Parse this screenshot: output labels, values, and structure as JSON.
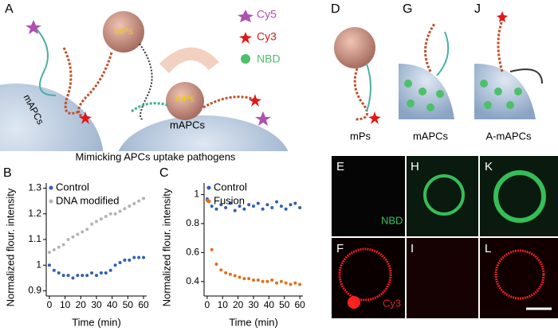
{
  "panel_a": {
    "label": "A",
    "particle_1": "mPs",
    "cell_1": "mAPCs",
    "particle_2": "mPs",
    "cell_2": "mAPCs",
    "legend_items": [
      "Cy5",
      "Cy3",
      "NBD"
    ],
    "caption": "Mimicking APCs uptake pathogens"
  },
  "schematics": [
    {
      "label": "D",
      "caption": "mPs"
    },
    {
      "label": "G",
      "caption": "mAPCs"
    },
    {
      "label": "J",
      "caption": "A-mAPCs"
    }
  ],
  "micrographs": [
    {
      "label": "E",
      "channel": "NBD"
    },
    {
      "label": "H"
    },
    {
      "label": "K"
    },
    {
      "label": "F",
      "channel": "Cy3"
    },
    {
      "label": "I"
    },
    {
      "label": "L"
    }
  ],
  "chart_data": [
    {
      "type": "scatter",
      "panel_label": "B",
      "xlabel": "Time (min)",
      "ylabel": "Normalized flour. intensity",
      "x": [
        0,
        3,
        6,
        9,
        12,
        15,
        18,
        21,
        24,
        27,
        30,
        33,
        36,
        39,
        42,
        45,
        48,
        51,
        54,
        57,
        60
      ],
      "series": [
        {
          "name": "Control",
          "color": "#2e5fb5",
          "values": [
            1.0,
            0.98,
            0.97,
            0.96,
            0.96,
            0.95,
            0.96,
            0.96,
            0.96,
            0.97,
            0.96,
            0.97,
            0.97,
            0.98,
            1.0,
            1.01,
            1.02,
            1.02,
            1.03,
            1.03,
            1.03
          ]
        },
        {
          "name": "DNA modified",
          "color": "#b4b4b4",
          "values": [
            1.05,
            1.06,
            1.07,
            1.08,
            1.1,
            1.11,
            1.12,
            1.13,
            1.14,
            1.16,
            1.17,
            1.18,
            1.19,
            1.2,
            1.2,
            1.21,
            1.22,
            1.23,
            1.24,
            1.25,
            1.26
          ]
        }
      ],
      "xlim": [
        -2,
        62
      ],
      "xticks": [
        0,
        10,
        20,
        30,
        40,
        50,
        60
      ],
      "ylim": [
        0.88,
        1.32
      ],
      "yticks": [
        0.9,
        1.0,
        1.1,
        1.2,
        1.3
      ],
      "legend": "upper left"
    },
    {
      "type": "scatter",
      "panel_label": "C",
      "xlabel": "Time (min)",
      "ylabel": "Normalized flour. intensity",
      "x": [
        0,
        3,
        6,
        9,
        12,
        15,
        18,
        21,
        24,
        27,
        30,
        33,
        36,
        39,
        42,
        45,
        48,
        51,
        54,
        57,
        60
      ],
      "series": [
        {
          "name": "Control",
          "color": "#2e5fb5",
          "values": [
            0.97,
            0.92,
            0.9,
            0.93,
            0.91,
            0.94,
            0.89,
            0.92,
            0.9,
            0.93,
            0.92,
            0.94,
            0.9,
            0.93,
            0.91,
            0.95,
            0.92,
            0.9,
            0.93,
            0.94,
            0.91
          ]
        },
        {
          "name": "Fusion",
          "color": "#e07020",
          "values": [
            0.96,
            0.62,
            0.52,
            0.48,
            0.46,
            0.45,
            0.44,
            0.43,
            0.42,
            0.42,
            0.41,
            0.41,
            0.4,
            0.4,
            0.41,
            0.39,
            0.4,
            0.39,
            0.38,
            0.39,
            0.38
          ]
        }
      ],
      "xlim": [
        -2,
        62
      ],
      "xticks": [
        0,
        10,
        20,
        30,
        40,
        50,
        60
      ],
      "ylim": [
        0.3,
        1.08
      ],
      "yticks": [
        0.4,
        0.6,
        0.8,
        1.0
      ],
      "legend": "upper left"
    }
  ]
}
